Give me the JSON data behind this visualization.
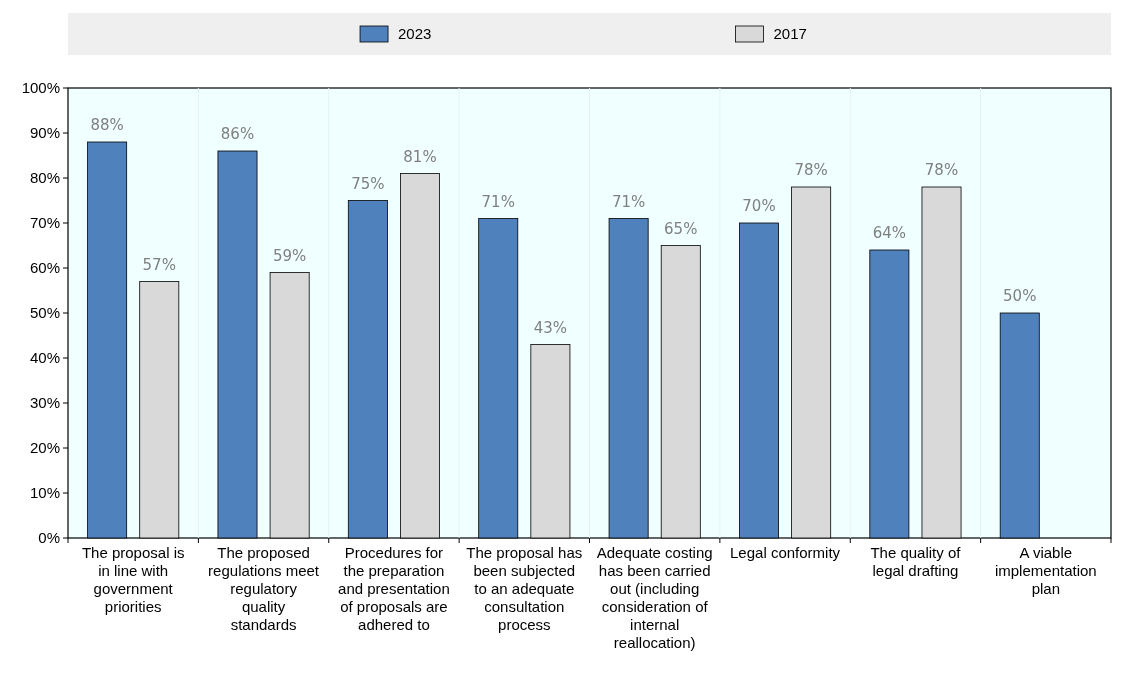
{
  "chart_data": {
    "type": "bar",
    "categories": [
      "The proposal is in line with government priorities",
      "The proposed regulations meet regulatory quality standards",
      "Procedures for the preparation and presentation of proposals are adhered to",
      "The proposal has been subjected to an adequate consultation process",
      "Adequate costing has been carried out (including consideration of internal reallocation)",
      "Legal conformity",
      "The quality of legal drafting",
      "A viable implementation plan"
    ],
    "series": [
      {
        "name": "2023",
        "color": "#4f81bd",
        "values": [
          88,
          86,
          75,
          71,
          71,
          70,
          64,
          50
        ],
        "value_labels": [
          "88%",
          "86%",
          "75%",
          "71%",
          "71%",
          "70%",
          "64%",
          "50%"
        ]
      },
      {
        "name": "2017",
        "color": "#d9d9d9",
        "values": [
          57,
          59,
          81,
          43,
          65,
          78,
          78,
          null
        ],
        "value_labels": [
          "57%",
          "59%",
          "81%",
          "43%",
          "65%",
          "78%",
          "78%",
          null
        ]
      }
    ],
    "ylim": [
      0,
      100
    ],
    "yticks": [
      {
        "value": 0,
        "label": "0%"
      },
      {
        "value": 10,
        "label": "10%"
      },
      {
        "value": 20,
        "label": "20%"
      },
      {
        "value": 30,
        "label": "30%"
      },
      {
        "value": 40,
        "label": "40%"
      },
      {
        "value": 50,
        "label": "50%"
      },
      {
        "value": 60,
        "label": "60%"
      },
      {
        "value": 70,
        "label": "70%"
      },
      {
        "value": 80,
        "label": "80%"
      },
      {
        "value": 90,
        "label": "90%"
      },
      {
        "value": 100,
        "label": "100%"
      }
    ],
    "legend": "top"
  }
}
